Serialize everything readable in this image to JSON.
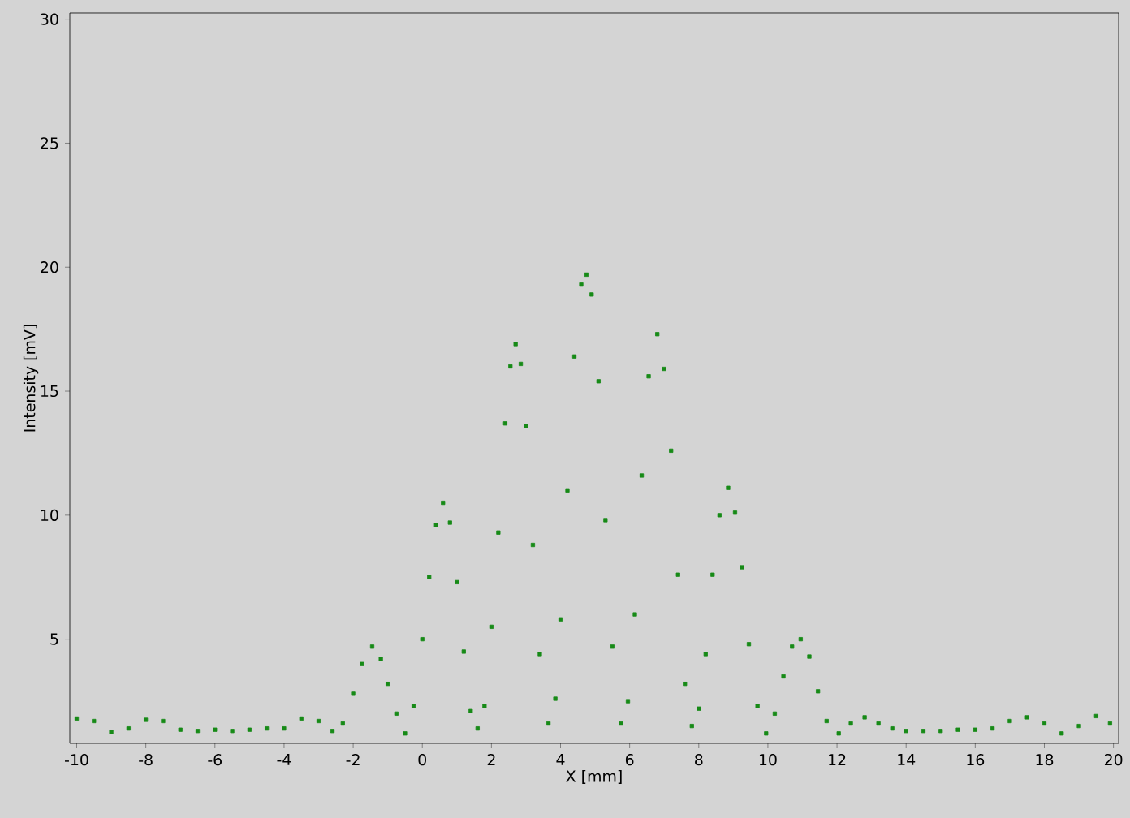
{
  "chart_data": {
    "type": "scatter",
    "xlabel": "X [mm]",
    "ylabel": "Intensity [mV]",
    "x": [
      -10,
      -9.5,
      -9,
      -8.5,
      -8,
      -7.5,
      -7,
      -6.5,
      -6,
      -5.5,
      -5,
      -4.5,
      -4,
      -3.5,
      -3,
      -2.6,
      -2.3,
      -2,
      -1.75,
      -1.45,
      -1.2,
      -1,
      -0.75,
      -0.5,
      -0.25,
      0,
      0.2,
      0.4,
      0.6,
      0.8,
      1.0,
      1.2,
      1.4,
      1.6,
      1.8,
      2.0,
      2.2,
      2.4,
      2.55,
      2.7,
      2.85,
      3.0,
      3.2,
      3.4,
      3.65,
      3.85,
      4.0,
      4.2,
      4.4,
      4.6,
      4.75,
      4.9,
      5.1,
      5.3,
      5.5,
      5.75,
      5.95,
      6.15,
      6.35,
      6.55,
      6.8,
      7.0,
      7.2,
      7.4,
      7.6,
      7.8,
      8.0,
      8.2,
      8.4,
      8.6,
      8.85,
      9.05,
      9.25,
      9.45,
      9.7,
      9.95,
      10.2,
      10.45,
      10.7,
      10.95,
      11.2,
      11.45,
      11.7,
      12.05,
      12.4,
      12.8,
      13.2,
      13.6,
      14,
      14.5,
      15,
      15.5,
      16,
      16.5,
      17,
      17.5,
      18,
      18.5,
      19,
      19.5,
      19.9
    ],
    "values": [
      1.8,
      1.7,
      1.25,
      1.4,
      1.75,
      1.7,
      1.35,
      1.3,
      1.35,
      1.3,
      1.35,
      1.4,
      1.4,
      1.8,
      1.7,
      1.3,
      1.6,
      2.8,
      4.0,
      4.7,
      4.2,
      3.2,
      2.0,
      1.2,
      2.3,
      5.0,
      7.5,
      9.6,
      10.5,
      9.7,
      7.3,
      4.5,
      2.1,
      1.4,
      2.3,
      5.5,
      9.3,
      13.7,
      16.0,
      16.9,
      16.1,
      13.6,
      8.8,
      4.4,
      1.6,
      2.6,
      5.8,
      11.0,
      16.4,
      19.3,
      19.7,
      18.9,
      15.4,
      9.8,
      4.7,
      1.6,
      2.5,
      6.0,
      11.6,
      15.6,
      17.3,
      15.9,
      12.6,
      7.6,
      3.2,
      1.5,
      2.2,
      4.4,
      7.6,
      10.0,
      11.1,
      10.1,
      7.9,
      4.8,
      2.3,
      1.2,
      2.0,
      3.5,
      4.7,
      5.0,
      4.3,
      2.9,
      1.7,
      1.2,
      1.6,
      1.85,
      1.6,
      1.4,
      1.3,
      1.3,
      1.3,
      1.35,
      1.35,
      1.4,
      1.7,
      1.85,
      1.6,
      1.2,
      1.5,
      1.9,
      1.6
    ],
    "color": "#178a17",
    "marker": "square",
    "xlim": [
      -10.2,
      20.15
    ],
    "ylim": [
      0.8,
      30.25
    ],
    "xticks": [
      -10,
      -8,
      -6,
      -4,
      -2,
      0,
      2,
      4,
      6,
      8,
      10,
      12,
      14,
      16,
      18,
      20
    ],
    "yticks": [
      5,
      10,
      15,
      20,
      25,
      30
    ]
  }
}
